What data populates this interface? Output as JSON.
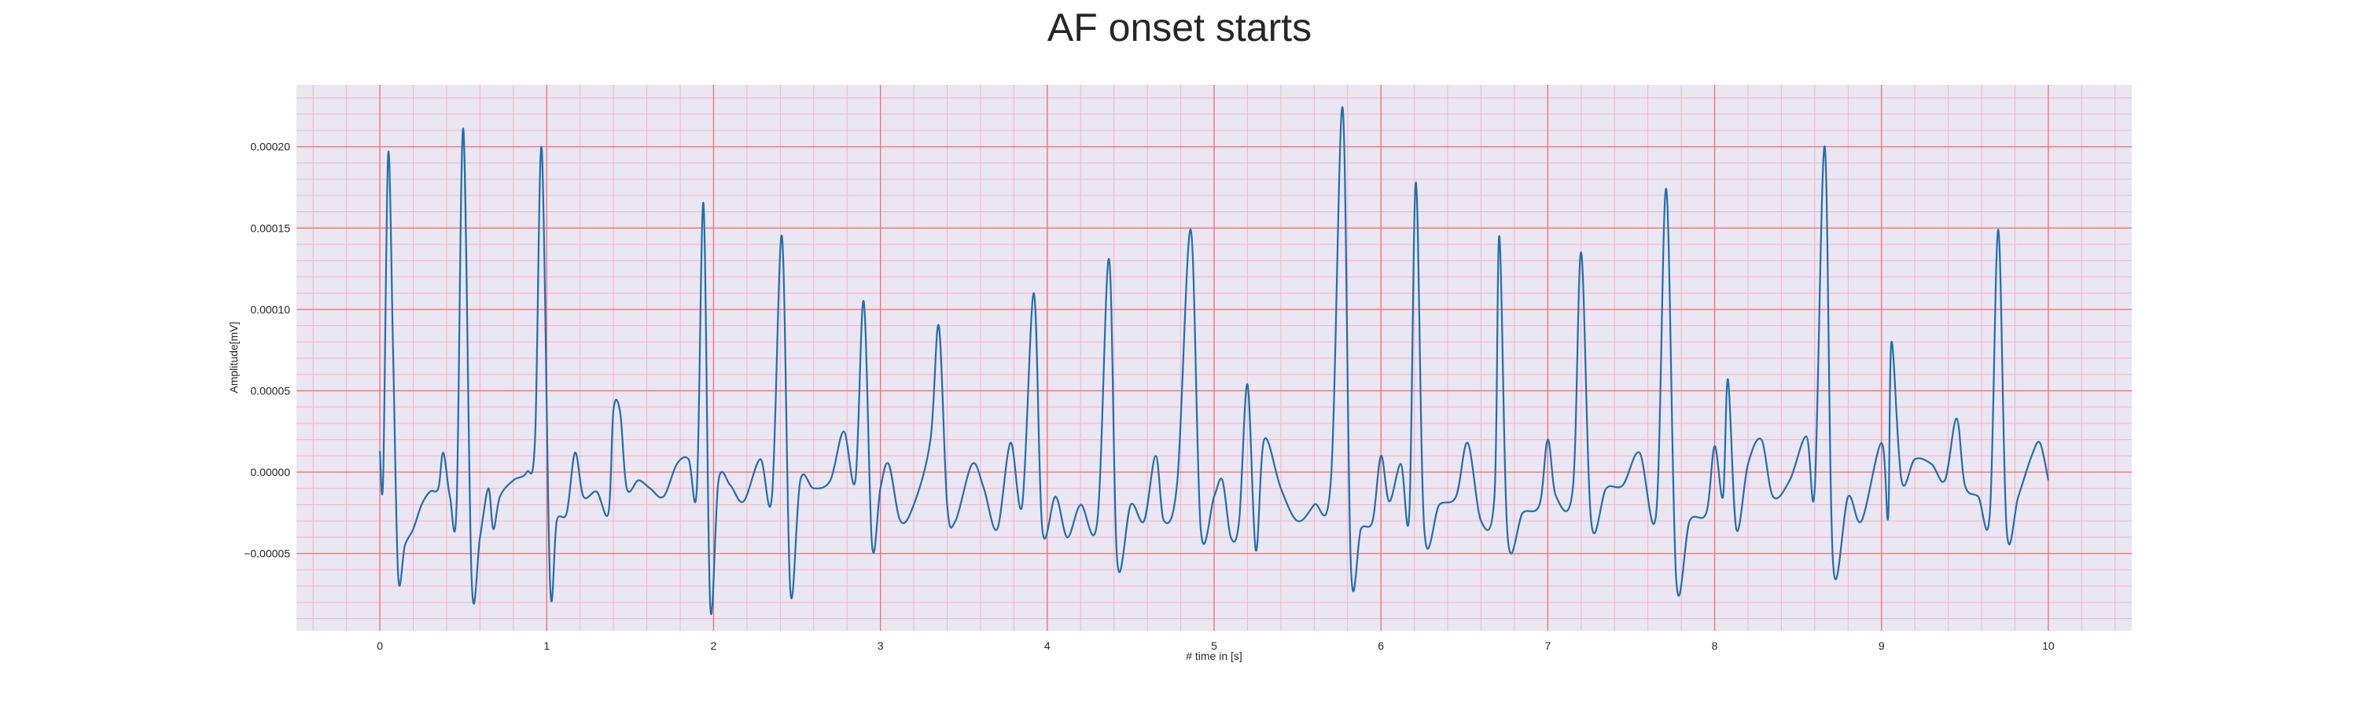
{
  "chart_data": {
    "type": "line",
    "title": "AF onset starts",
    "xlabel": "# time in [s]",
    "ylabel": "Amplitude[mV]",
    "xlim": [
      -0.5,
      10.5
    ],
    "ylim": [
      -9.75e-05,
      0.000238
    ],
    "xticks": [
      0,
      1,
      2,
      3,
      4,
      5,
      6,
      7,
      8,
      9,
      10
    ],
    "xtick_labels": [
      "0",
      "1",
      "2",
      "3",
      "4",
      "5",
      "6",
      "7",
      "8",
      "9",
      "10"
    ],
    "yticks": [
      -5e-05,
      0.0,
      5e-05,
      0.0001,
      0.00015,
      0.0002
    ],
    "ytick_labels": [
      "−0.00005",
      "0.00000",
      "0.00005",
      "0.00010",
      "0.00015",
      "0.00020"
    ],
    "grid": true,
    "minor_grid": true,
    "colors": {
      "line": "#1f6fb0",
      "major_grid": "#f07070",
      "minor_grid": "#f2b5c2",
      "plot_bg": "#eae6f2"
    },
    "series": [
      {
        "values": [
          [
            0.0,
            1.3e-05
          ],
          [
            0.02,
            -3e-06
          ],
          [
            0.05,
            0.000196
          ],
          [
            0.08,
            7e-05
          ],
          [
            0.11,
            -6.4e-05
          ],
          [
            0.15,
            -4.5e-05
          ],
          [
            0.2,
            -3.5e-05
          ],
          [
            0.25,
            -2e-05
          ],
          [
            0.3,
            -1.2e-05
          ],
          [
            0.35,
            -1e-05
          ],
          [
            0.38,
            1.2e-05
          ],
          [
            0.42,
            -1.5e-05
          ],
          [
            0.46,
            -2e-05
          ],
          [
            0.5,
            0.000211
          ],
          [
            0.55,
            -6.6e-05
          ],
          [
            0.6,
            -4e-05
          ],
          [
            0.65,
            -1e-05
          ],
          [
            0.68,
            -3.5e-05
          ],
          [
            0.72,
            -1.5e-05
          ],
          [
            0.8,
            -5e-06
          ],
          [
            0.88,
            0.0
          ],
          [
            0.93,
            2e-05
          ],
          [
            0.97,
            0.000199
          ],
          [
            1.02,
            -6.8e-05
          ],
          [
            1.06,
            -3e-05
          ],
          [
            1.12,
            -2.5e-05
          ],
          [
            1.17,
            1.2e-05
          ],
          [
            1.22,
            -1.5e-05
          ],
          [
            1.3,
            -1.2e-05
          ],
          [
            1.37,
            -2.5e-05
          ],
          [
            1.4,
            3.8e-05
          ],
          [
            1.44,
            3.7e-05
          ],
          [
            1.48,
            -1e-05
          ],
          [
            1.55,
            -5e-06
          ],
          [
            1.62,
            -1e-05
          ],
          [
            1.7,
            -1.5e-05
          ],
          [
            1.78,
            5e-06
          ],
          [
            1.85,
            8e-06
          ],
          [
            1.9,
            -1e-05
          ],
          [
            1.94,
            0.000165
          ],
          [
            1.98,
            -8.2e-05
          ],
          [
            2.03,
            -5e-06
          ],
          [
            2.1,
            -8e-06
          ],
          [
            2.18,
            -1.8e-05
          ],
          [
            2.28,
            8e-06
          ],
          [
            2.35,
            -1.5e-05
          ],
          [
            2.41,
            0.000145
          ],
          [
            2.46,
            -7.3e-05
          ],
          [
            2.52,
            -5e-06
          ],
          [
            2.6,
            -1e-05
          ],
          [
            2.7,
            -5e-06
          ],
          [
            2.78,
            2.5e-05
          ],
          [
            2.85,
            -5e-06
          ],
          [
            2.9,
            0.000105
          ],
          [
            2.95,
            -4.5e-05
          ],
          [
            3.0,
            -1e-05
          ],
          [
            3.05,
            5e-06
          ],
          [
            3.12,
            -3e-05
          ],
          [
            3.2,
            -2e-05
          ],
          [
            3.3,
            2e-05
          ],
          [
            3.35,
            9e-05
          ],
          [
            3.4,
            -2e-05
          ],
          [
            3.45,
            -3e-05
          ],
          [
            3.55,
            5e-06
          ],
          [
            3.62,
            -1e-05
          ],
          [
            3.7,
            -3.5e-05
          ],
          [
            3.78,
            1.8e-05
          ],
          [
            3.85,
            -2e-05
          ],
          [
            3.92,
            0.00011
          ],
          [
            3.97,
            -3.5e-05
          ],
          [
            4.05,
            -1.5e-05
          ],
          [
            4.12,
            -4e-05
          ],
          [
            4.2,
            -2e-05
          ],
          [
            4.3,
            -3e-05
          ],
          [
            4.37,
            0.000131
          ],
          [
            4.42,
            -5.5e-05
          ],
          [
            4.5,
            -2e-05
          ],
          [
            4.58,
            -3e-05
          ],
          [
            4.65,
            1e-05
          ],
          [
            4.7,
            -3e-05
          ],
          [
            4.78,
            -5e-06
          ],
          [
            4.86,
            0.000149
          ],
          [
            4.92,
            -3.5e-05
          ],
          [
            5.0,
            -1.5e-05
          ],
          [
            5.05,
            -5e-06
          ],
          [
            5.1,
            -4e-05
          ],
          [
            5.15,
            -3e-05
          ],
          [
            5.2,
            5.4e-05
          ],
          [
            5.25,
            -4.8e-05
          ],
          [
            5.3,
            2e-05
          ],
          [
            5.4,
            -1e-05
          ],
          [
            5.5,
            -3e-05
          ],
          [
            5.6,
            -2e-05
          ],
          [
            5.7,
            -5e-06
          ],
          [
            5.77,
            0.000224
          ],
          [
            5.82,
            -5.8e-05
          ],
          [
            5.88,
            -3.5e-05
          ],
          [
            5.95,
            -3e-05
          ],
          [
            6.0,
            1e-05
          ],
          [
            6.05,
            -1.8e-05
          ],
          [
            6.12,
            5e-06
          ],
          [
            6.17,
            -2.5e-05
          ],
          [
            6.21,
            0.000178
          ],
          [
            6.26,
            -3.5e-05
          ],
          [
            6.35,
            -2e-05
          ],
          [
            6.45,
            -1.5e-05
          ],
          [
            6.52,
            1.8e-05
          ],
          [
            6.6,
            -3e-05
          ],
          [
            6.68,
            -1.5e-05
          ],
          [
            6.71,
            0.000145
          ],
          [
            6.76,
            -4e-05
          ],
          [
            6.85,
            -2.5e-05
          ],
          [
            6.95,
            -2e-05
          ],
          [
            7.0,
            2e-05
          ],
          [
            7.05,
            -1.5e-05
          ],
          [
            7.15,
            -1e-05
          ],
          [
            7.2,
            0.000135
          ],
          [
            7.26,
            -3e-05
          ],
          [
            7.35,
            -1e-05
          ],
          [
            7.45,
            -8e-06
          ],
          [
            7.55,
            1.2e-05
          ],
          [
            7.65,
            -2.5e-05
          ],
          [
            7.71,
            0.000174
          ],
          [
            7.77,
            -6.6e-05
          ],
          [
            7.85,
            -3e-05
          ],
          [
            7.95,
            -2.5e-05
          ],
          [
            8.0,
            1.6e-05
          ],
          [
            8.05,
            -1.5e-05
          ],
          [
            8.08,
            5.7e-05
          ],
          [
            8.13,
            -3.5e-05
          ],
          [
            8.2,
            5e-06
          ],
          [
            8.28,
            2e-05
          ],
          [
            8.35,
            -1.5e-05
          ],
          [
            8.45,
            -5e-06
          ],
          [
            8.55,
            2.2e-05
          ],
          [
            8.6,
            -1e-05
          ],
          [
            8.66,
            0.0002
          ],
          [
            8.71,
            -5.6e-05
          ],
          [
            8.8,
            -1.5e-05
          ],
          [
            8.88,
            -3e-05
          ],
          [
            9.0,
            1.8e-05
          ],
          [
            9.04,
            -2.8e-05
          ],
          [
            9.06,
            8e-05
          ],
          [
            9.12,
            -5e-06
          ],
          [
            9.2,
            8e-06
          ],
          [
            9.3,
            5e-06
          ],
          [
            9.38,
            -5e-06
          ],
          [
            9.45,
            3.3e-05
          ],
          [
            9.5,
            -8e-06
          ],
          [
            9.58,
            -1.5e-05
          ],
          [
            9.65,
            -2.5e-05
          ],
          [
            9.7,
            0.000149
          ],
          [
            9.75,
            -3.5e-05
          ],
          [
            9.82,
            -1.5e-05
          ],
          [
            9.9,
            1e-05
          ],
          [
            9.95,
            1.8e-05
          ],
          [
            10.0,
            -5e-06
          ]
        ]
      }
    ]
  }
}
